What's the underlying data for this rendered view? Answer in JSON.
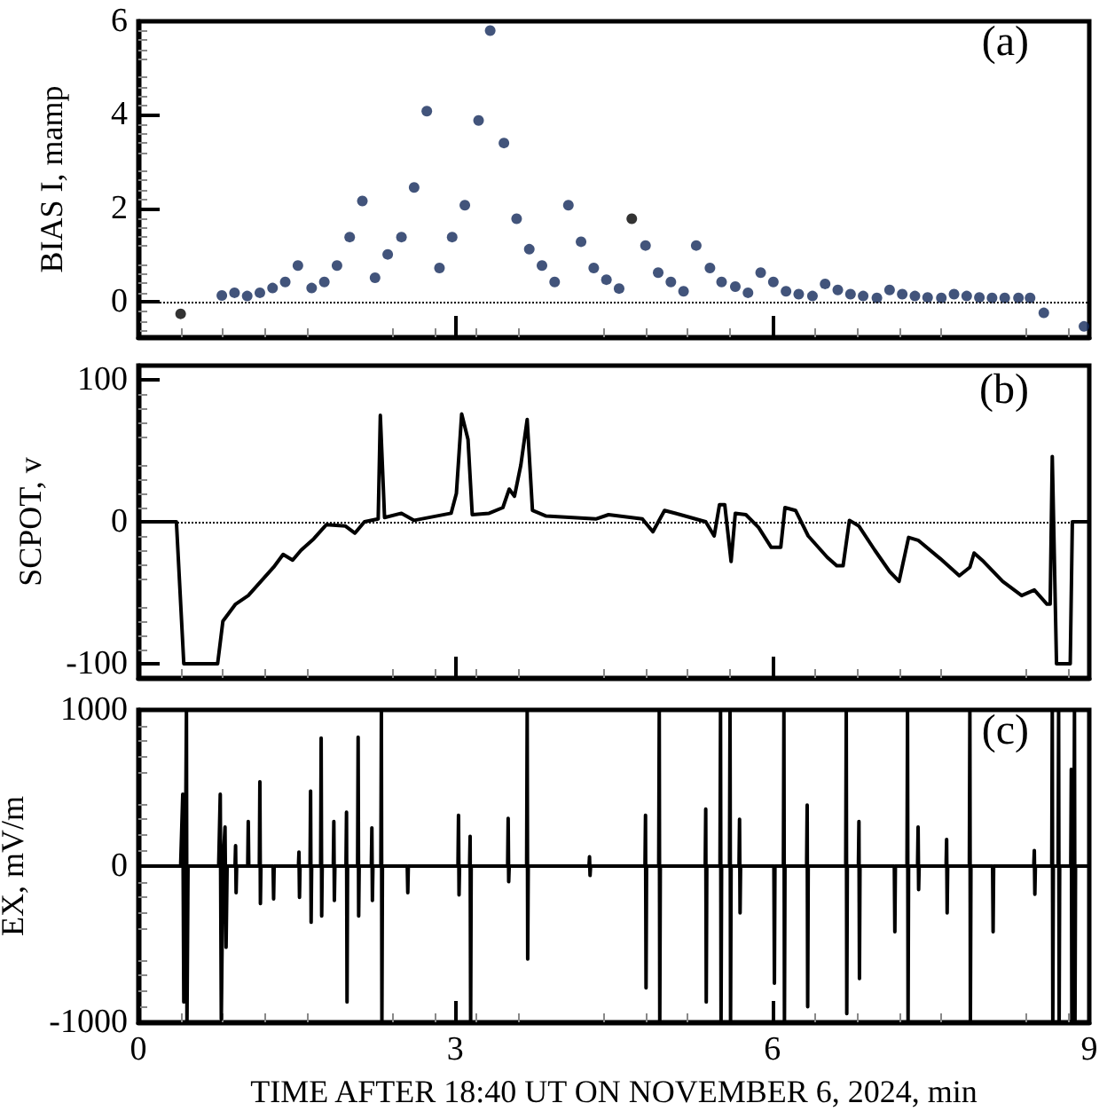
{
  "chart_data": [
    {
      "type": "scatter",
      "ylabel": "BIAS I, mamp",
      "annotations": [
        "(a)"
      ],
      "xlim": [
        0,
        9
      ],
      "xticks": [
        0,
        3,
        6,
        9
      ],
      "ylim": [
        -0.75,
        6
      ],
      "yticks": [
        0,
        2,
        4,
        6
      ],
      "tick_labels": "y",
      "grid": false,
      "marker": "circle",
      "x": [
        0.4,
        0.79,
        0.91,
        1.03,
        1.15,
        1.27,
        1.39,
        1.51,
        1.64,
        1.76,
        1.88,
        2.0,
        2.12,
        2.24,
        2.36,
        2.49,
        2.61,
        2.73,
        2.85,
        2.97,
        3.09,
        3.22,
        3.33,
        3.46,
        3.58,
        3.7,
        3.82,
        3.94,
        4.07,
        4.19,
        4.31,
        4.43,
        4.55,
        4.67,
        4.8,
        4.92,
        5.04,
        5.16,
        5.28,
        5.41,
        5.52,
        5.65,
        5.77,
        5.89,
        6.01,
        6.13,
        6.25,
        6.38,
        6.5,
        6.62,
        6.74,
        6.86,
        6.99,
        7.11,
        7.23,
        7.35,
        7.47,
        7.6,
        7.72,
        7.84,
        7.96,
        8.08,
        8.2,
        8.33,
        8.44,
        8.57,
        8.95
      ],
      "ref_lines": [
        {
          "axis": "y",
          "value": 0,
          "line_style": "dotted",
          "color": "#000000"
        }
      ],
      "series": [
        {
          "values": [
            -0.25,
            0.14,
            0.2,
            0.13,
            0.2,
            0.3,
            0.43,
            0.78,
            0.3,
            0.43,
            0.78,
            1.39,
            2.16,
            0.52,
            1.02,
            1.39,
            2.45,
            4.08,
            0.73,
            1.39,
            2.07,
            3.88,
            5.8,
            3.4,
            1.78,
            1.13,
            0.78,
            0.43,
            2.07,
            1.29,
            0.73,
            0.48,
            0.29,
            1.78,
            1.21,
            0.63,
            0.43,
            0.23,
            1.21,
            0.73,
            0.43,
            0.33,
            0.2,
            0.63,
            0.43,
            0.23,
            0.17,
            0.13,
            0.39,
            0.26,
            0.17,
            0.13,
            0.09,
            0.26,
            0.17,
            0.13,
            0.1,
            0.09,
            0.17,
            0.13,
            0.1,
            0.09,
            0.09,
            0.09,
            0.09,
            -0.23,
            -0.52
          ],
          "colors": [
            "#000000",
            "#13295a",
            "#13295a",
            "#13295a",
            "#13295a",
            "#13295a",
            "#13295a",
            "#13295a",
            "#13295a",
            "#13295a",
            "#13295a",
            "#13295a",
            "#13295a",
            "#13295a",
            "#13295a",
            "#13295a",
            "#13295a",
            "#13295a",
            "#13295a",
            "#13295a",
            "#13295a",
            "#13295a",
            "#13295a",
            "#13295a",
            "#13295a",
            "#13295a",
            "#13295a",
            "#13295a",
            "#13295a",
            "#13295a",
            "#13295a",
            "#13295a",
            "#13295a",
            "#000000",
            "#13295a",
            "#13295a",
            "#13295a",
            "#13295a",
            "#13295a",
            "#13295a",
            "#13295a",
            "#13295a",
            "#13295a",
            "#13295a",
            "#13295a",
            "#13295a",
            "#13295a",
            "#13295a",
            "#13295a",
            "#13295a",
            "#13295a",
            "#13295a",
            "#13295a",
            "#13295a",
            "#13295a",
            "#13295a",
            "#13295a",
            "#13295a",
            "#13295a",
            "#13295a",
            "#13295a",
            "#13295a",
            "#13295a",
            "#13295a",
            "#13295a",
            "#13295a",
            "#13295a"
          ]
        }
      ]
    },
    {
      "type": "line",
      "ylabel": "SCPOT, v",
      "annotations": [
        "(b)"
      ],
      "xlim": [
        0,
        9
      ],
      "xticks": [
        0,
        3,
        6,
        9
      ],
      "ylim": [
        -110,
        110
      ],
      "yticks": [
        -100,
        0,
        100
      ],
      "tick_labels": "y",
      "grid": false,
      "marker": "none",
      "line_style": "solid",
      "x": [
        0,
        0.36,
        0.43,
        0.75,
        0.8,
        0.92,
        1.04,
        1.16,
        1.28,
        1.37,
        1.46,
        1.54,
        1.66,
        1.78,
        1.96,
        2.05,
        2.14,
        2.27,
        2.29,
        2.33,
        2.49,
        2.61,
        2.96,
        3.01,
        3.06,
        3.12,
        3.16,
        3.32,
        3.45,
        3.51,
        3.56,
        3.62,
        3.68,
        3.73,
        3.86,
        4.33,
        4.45,
        4.77,
        4.87,
        4.98,
        5.13,
        5.37,
        5.45,
        5.5,
        5.55,
        5.61,
        5.65,
        5.75,
        5.87,
        5.99,
        6.08,
        6.12,
        6.22,
        6.34,
        6.52,
        6.61,
        6.67,
        6.73,
        6.82,
        6.97,
        7.11,
        7.2,
        7.29,
        7.38,
        7.59,
        7.77,
        7.87,
        7.91,
        8.0,
        8.18,
        8.36,
        8.48,
        8.6,
        8.63,
        8.65,
        8.69,
        8.82,
        8.84,
        9
      ],
      "ref_lines": [
        {
          "axis": "y",
          "value": 0,
          "line_style": "dotted",
          "color": "#000000"
        }
      ],
      "series": [
        {
          "color": "#000000",
          "values": [
            0,
            0,
            -100,
            -100,
            -70,
            -58,
            -52,
            -42,
            -32,
            -23,
            -27,
            -20,
            -12,
            -2,
            -3,
            -8,
            0,
            2,
            75,
            3,
            6,
            1,
            6,
            20,
            76,
            58,
            5,
            6,
            10,
            23,
            18,
            40,
            72,
            8,
            4,
            2,
            5,
            2,
            -7,
            8,
            5,
            0,
            -10,
            12,
            12,
            -28,
            6,
            5,
            -4,
            -18,
            -18,
            10,
            8,
            -10,
            -25,
            -31,
            -31,
            1,
            -3,
            -20,
            -35,
            -42,
            -11,
            -13,
            -26,
            -38,
            -32,
            -22,
            -28,
            -42,
            -52,
            -48,
            -58,
            -58,
            46,
            -100,
            -100,
            0,
            0
          ]
        }
      ]
    },
    {
      "type": "line",
      "xlabel": "TIME AFTER 18:40 UT ON NOVEMBER 6, 2024, min",
      "ylabel": "EX, mV/m",
      "annotations": [
        "(c)"
      ],
      "xlim": [
        0,
        9
      ],
      "xticks": [
        0,
        3,
        6,
        9
      ],
      "ylim": [
        -1000,
        1000
      ],
      "yticks": [
        -1000,
        0,
        1000
      ],
      "grid": false,
      "marker": "none",
      "line_style": "solid",
      "x": [
        0,
        0.4,
        0.42,
        0.43,
        0.445,
        0.455,
        0.46,
        0.47,
        0.76,
        0.775,
        0.785,
        0.8,
        0.82,
        0.83,
        0.84,
        0.915,
        0.92,
        0.925,
        0.93,
        1.035,
        1.04,
        1.045,
        1.145,
        1.15,
        1.155,
        1.16,
        1.275,
        1.28,
        1.285,
        1.515,
        1.52,
        1.525,
        1.53,
        1.625,
        1.63,
        1.635,
        1.64,
        1.725,
        1.73,
        1.735,
        1.74,
        1.845,
        1.85,
        1.855,
        1.86,
        1.965,
        1.97,
        1.975,
        1.98,
        2.075,
        2.08,
        2.085,
        2.09,
        2.205,
        2.21,
        2.215,
        2.22,
        2.295,
        2.3,
        2.305,
        2.31,
        2.545,
        2.55,
        2.555,
        3.025,
        3.03,
        3.035,
        3.04,
        3.135,
        3.14,
        3.145,
        3.15,
        3.495,
        3.5,
        3.505,
        3.51,
        3.675,
        3.68,
        3.685,
        3.69,
        4.265,
        4.27,
        4.275,
        4.28,
        4.795,
        4.8,
        4.805,
        4.81,
        4.925,
        4.93,
        4.935,
        4.94,
        5.365,
        5.37,
        5.375,
        5.38,
        5.505,
        5.51,
        5.515,
        5.52,
        5.595,
        5.6,
        5.605,
        5.61,
        5.685,
        5.69,
        5.695,
        5.7,
        6.015,
        6.02,
        6.025,
        6.105,
        6.11,
        6.115,
        6.12,
        6.325,
        6.33,
        6.335,
        6.34,
        6.695,
        6.7,
        6.705,
        6.71,
        6.815,
        6.82,
        6.825,
        6.83,
        7.155,
        7.16,
        7.165,
        7.275,
        7.28,
        7.285,
        7.29,
        7.375,
        7.38,
        7.385,
        7.39,
        7.645,
        7.65,
        7.655,
        7.66,
        7.865,
        7.87,
        7.875,
        7.88,
        8.085,
        8.09,
        8.095,
        8.475,
        8.48,
        8.485,
        8.49,
        8.645,
        8.65,
        8.655,
        8.66,
        8.705,
        8.71,
        8.715,
        8.72,
        8.825,
        8.83,
        8.835,
        8.84,
        8.855,
        8.86,
        8.865,
        8.87,
        9
      ],
      "series": [
        {
          "color": "#000000",
          "values": [
            0,
            0,
            460,
            -870,
            0,
            1000,
            -1000,
            0,
            0,
            460,
            -980,
            0,
            250,
            -520,
            0,
            0,
            130,
            -170,
            0,
            0,
            285,
            0,
            0,
            540,
            -240,
            0,
            0,
            -210,
            0,
            0,
            90,
            -200,
            0,
            0,
            480,
            -360,
            0,
            0,
            820,
            -320,
            0,
            0,
            285,
            -220,
            0,
            0,
            345,
            -870,
            0,
            0,
            825,
            -320,
            0,
            0,
            245,
            -220,
            0,
            0,
            1000,
            -1000,
            0,
            0,
            -170,
            0,
            0,
            325,
            -185,
            0,
            0,
            190,
            -1000,
            0,
            0,
            305,
            -100,
            0,
            0,
            1000,
            -595,
            0,
            0,
            60,
            -60,
            0,
            0,
            325,
            -780,
            0,
            0,
            1000,
            -1000,
            0,
            0,
            365,
            -870,
            0,
            0,
            1000,
            -1000,
            0,
            0,
            1000,
            -1000,
            0,
            0,
            300,
            -300,
            0,
            0,
            -750,
            0,
            0,
            1000,
            -1000,
            0,
            0,
            390,
            -900,
            0,
            0,
            1000,
            -945,
            0,
            0,
            285,
            -720,
            0,
            0,
            -420,
            0,
            0,
            1000,
            -1000,
            0,
            0,
            250,
            -150,
            0,
            0,
            170,
            -300,
            0,
            0,
            1000,
            -1000,
            0,
            0,
            -420,
            0,
            0,
            100,
            -180,
            0,
            0,
            1000,
            -1000,
            0,
            0,
            1000,
            -1000,
            0,
            0,
            620,
            -1000,
            0,
            0,
            1000,
            -1000,
            0,
            0
          ]
        }
      ]
    }
  ]
}
